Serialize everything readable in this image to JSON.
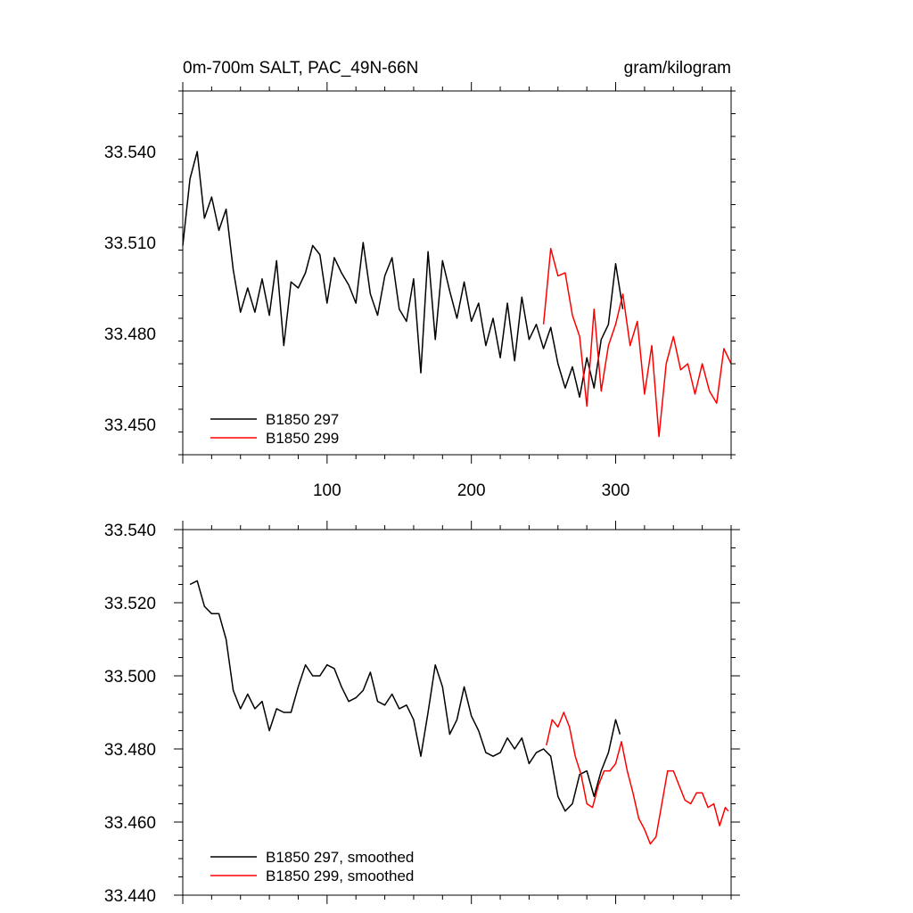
{
  "chart_data": [
    {
      "type": "line",
      "title": "0m-700m SALT, PAC_49N-66N",
      "units": "gram/kilogram",
      "xlim": [
        0,
        380
      ],
      "ylim": [
        33.44,
        33.56
      ],
      "xticks": [
        100,
        200,
        300
      ],
      "xtick_labels": [
        "100",
        "200",
        "300"
      ],
      "yticks": [
        33.45,
        33.48,
        33.51,
        33.54
      ],
      "ytick_labels": [
        "33.450",
        "33.480",
        "33.510",
        "33.540"
      ],
      "legend_position": "bottom-left",
      "series": [
        {
          "name": "B1850 297",
          "color": "#000000",
          "x": [
            0,
            5,
            10,
            15,
            20,
            25,
            30,
            35,
            40,
            45,
            50,
            55,
            60,
            65,
            70,
            75,
            80,
            85,
            90,
            95,
            100,
            105,
            110,
            115,
            120,
            125,
            130,
            135,
            140,
            145,
            150,
            155,
            160,
            165,
            170,
            175,
            180,
            185,
            190,
            195,
            200,
            205,
            210,
            215,
            220,
            225,
            230,
            235,
            240,
            245,
            250,
            255,
            260,
            265,
            270,
            275,
            280,
            285,
            290,
            295,
            300,
            305
          ],
          "y": [
            33.509,
            33.531,
            33.54,
            33.518,
            33.525,
            33.514,
            33.521,
            33.501,
            33.487,
            33.495,
            33.487,
            33.498,
            33.486,
            33.504,
            33.476,
            33.497,
            33.495,
            33.5,
            33.509,
            33.506,
            33.49,
            33.505,
            33.5,
            33.496,
            33.49,
            33.51,
            33.493,
            33.486,
            33.499,
            33.505,
            33.488,
            33.484,
            33.498,
            33.467,
            33.507,
            33.478,
            33.504,
            33.494,
            33.485,
            33.497,
            33.484,
            33.49,
            33.476,
            33.485,
            33.472,
            33.49,
            33.471,
            33.492,
            33.478,
            33.483,
            33.475,
            33.482,
            33.47,
            33.462,
            33.469,
            33.459,
            33.472,
            33.462,
            33.478,
            33.483,
            33.503,
            33.488
          ]
        },
        {
          "name": "B1850 299",
          "color": "#ff0000",
          "x": [
            250,
            255,
            260,
            265,
            270,
            275,
            280,
            285,
            290,
            295,
            300,
            305,
            310,
            315,
            320,
            325,
            330,
            335,
            340,
            345,
            350,
            355,
            360,
            365,
            370,
            375,
            380
          ],
          "y": [
            33.483,
            33.508,
            33.499,
            33.5,
            33.486,
            33.479,
            33.456,
            33.488,
            33.461,
            33.476,
            33.483,
            33.493,
            33.476,
            33.484,
            33.46,
            33.476,
            33.446,
            33.47,
            33.479,
            33.468,
            33.47,
            33.46,
            33.47,
            33.461,
            33.457,
            33.475,
            33.47
          ]
        }
      ]
    },
    {
      "type": "line",
      "xlim": [
        0,
        380
      ],
      "ylim": [
        33.44,
        33.54
      ],
      "xticks": [
        100,
        200,
        300
      ],
      "yticks": [
        33.44,
        33.46,
        33.48,
        33.5,
        33.52,
        33.54
      ],
      "ytick_labels": [
        "33.440",
        "33.460",
        "33.480",
        "33.500",
        "33.520",
        "33.540"
      ],
      "legend_position": "bottom-left",
      "series": [
        {
          "name": "B1850 297, smoothed",
          "color": "#000000",
          "x": [
            5,
            10,
            15,
            20,
            25,
            30,
            35,
            40,
            45,
            50,
            55,
            60,
            65,
            70,
            75,
            80,
            85,
            90,
            95,
            100,
            105,
            110,
            115,
            120,
            125,
            130,
            135,
            140,
            145,
            150,
            155,
            160,
            165,
            170,
            175,
            180,
            185,
            190,
            195,
            200,
            205,
            210,
            215,
            220,
            225,
            230,
            235,
            240,
            245,
            250,
            255,
            260,
            265,
            270,
            275,
            280,
            285,
            290,
            295,
            300,
            303
          ],
          "y": [
            33.525,
            33.526,
            33.519,
            33.517,
            33.517,
            33.51,
            33.496,
            33.491,
            33.495,
            33.491,
            33.493,
            33.485,
            33.491,
            33.49,
            33.49,
            33.497,
            33.503,
            33.5,
            33.5,
            33.503,
            33.502,
            33.497,
            33.493,
            33.494,
            33.496,
            33.501,
            33.493,
            33.492,
            33.495,
            33.491,
            33.492,
            33.488,
            33.478,
            33.49,
            33.503,
            33.497,
            33.484,
            33.488,
            33.497,
            33.489,
            33.485,
            33.479,
            33.478,
            33.479,
            33.483,
            33.48,
            33.483,
            33.476,
            33.479,
            33.48,
            33.478,
            33.467,
            33.463,
            33.465,
            33.473,
            33.474,
            33.467,
            33.474,
            33.479,
            33.488,
            33.484
          ]
        },
        {
          "name": "B1850 299, smoothed",
          "color": "#ff0000",
          "x": [
            252,
            256,
            260,
            264,
            268,
            272,
            276,
            280,
            284,
            288,
            292,
            296,
            300,
            304,
            308,
            312,
            316,
            320,
            324,
            328,
            332,
            336,
            340,
            344,
            348,
            352,
            356,
            360,
            364,
            368,
            372,
            376,
            378
          ],
          "y": [
            33.481,
            33.488,
            33.486,
            33.49,
            33.486,
            33.478,
            33.473,
            33.465,
            33.464,
            33.47,
            33.474,
            33.474,
            33.476,
            33.482,
            33.474,
            33.468,
            33.461,
            33.458,
            33.454,
            33.456,
            33.465,
            33.474,
            33.474,
            33.47,
            33.466,
            33.465,
            33.468,
            33.468,
            33.464,
            33.465,
            33.459,
            33.464,
            33.463
          ]
        }
      ]
    }
  ]
}
